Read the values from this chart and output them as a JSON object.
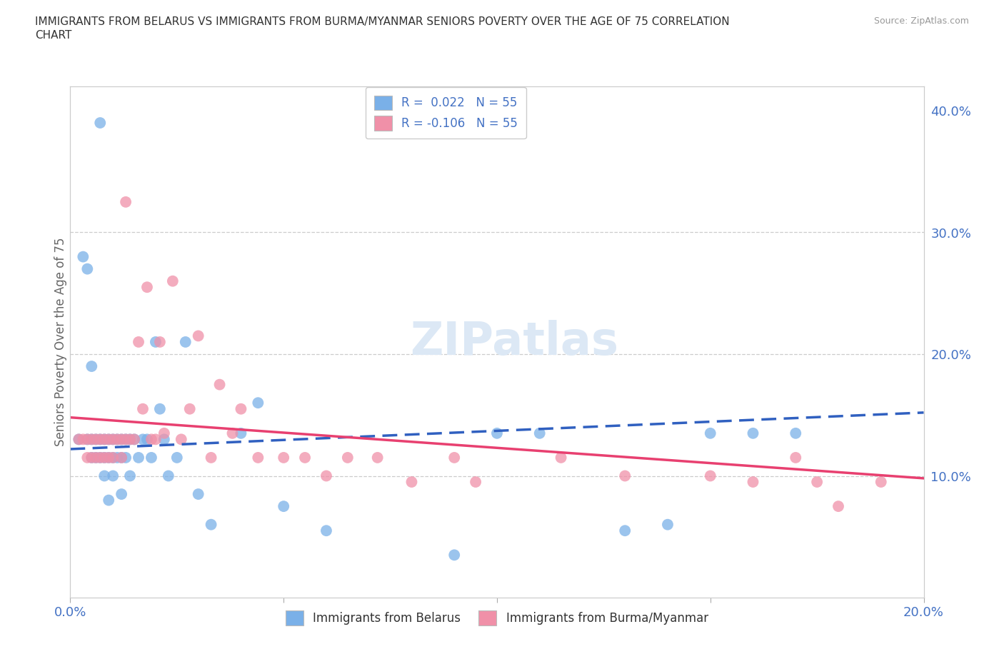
{
  "title_line1": "IMMIGRANTS FROM BELARUS VS IMMIGRANTS FROM BURMA/MYANMAR SENIORS POVERTY OVER THE AGE OF 75 CORRELATION",
  "title_line2": "CHART",
  "source": "Source: ZipAtlas.com",
  "ylabel": "Seniors Poverty Over the Age of 75",
  "xlim": [
    0.0,
    0.2
  ],
  "ylim": [
    0.0,
    0.42
  ],
  "background_color": "#ffffff",
  "belarus_color": "#7ab0e8",
  "burma_color": "#f090a8",
  "blue_color": "#4472c4",
  "belarus_line_color": "#3060c0",
  "burma_line_color": "#e84070",
  "grid_color": "#cccccc",
  "watermark_color": "#dce8f5",
  "belarus_scatter_x": [
    0.002,
    0.003,
    0.004,
    0.004,
    0.005,
    0.005,
    0.005,
    0.006,
    0.006,
    0.007,
    0.007,
    0.007,
    0.008,
    0.008,
    0.008,
    0.009,
    0.009,
    0.009,
    0.01,
    0.01,
    0.01,
    0.011,
    0.011,
    0.012,
    0.012,
    0.012,
    0.013,
    0.013,
    0.014,
    0.014,
    0.015,
    0.016,
    0.017,
    0.018,
    0.019,
    0.02,
    0.021,
    0.022,
    0.023,
    0.025,
    0.027,
    0.03,
    0.033,
    0.04,
    0.044,
    0.05,
    0.06,
    0.09,
    0.1,
    0.11,
    0.13,
    0.14,
    0.15,
    0.16,
    0.17
  ],
  "belarus_scatter_y": [
    0.13,
    0.28,
    0.27,
    0.13,
    0.19,
    0.13,
    0.115,
    0.13,
    0.115,
    0.13,
    0.115,
    0.39,
    0.115,
    0.13,
    0.1,
    0.13,
    0.115,
    0.08,
    0.13,
    0.115,
    0.1,
    0.13,
    0.115,
    0.13,
    0.115,
    0.085,
    0.13,
    0.115,
    0.13,
    0.1,
    0.13,
    0.115,
    0.13,
    0.13,
    0.115,
    0.21,
    0.155,
    0.13,
    0.1,
    0.115,
    0.21,
    0.085,
    0.06,
    0.135,
    0.16,
    0.075,
    0.055,
    0.035,
    0.135,
    0.135,
    0.055,
    0.06,
    0.135,
    0.135,
    0.135
  ],
  "burma_scatter_x": [
    0.002,
    0.003,
    0.004,
    0.004,
    0.005,
    0.005,
    0.006,
    0.006,
    0.007,
    0.007,
    0.008,
    0.008,
    0.009,
    0.009,
    0.01,
    0.01,
    0.011,
    0.012,
    0.012,
    0.013,
    0.013,
    0.014,
    0.015,
    0.016,
    0.017,
    0.018,
    0.019,
    0.02,
    0.021,
    0.022,
    0.024,
    0.026,
    0.028,
    0.03,
    0.033,
    0.035,
    0.038,
    0.04,
    0.044,
    0.05,
    0.055,
    0.06,
    0.065,
    0.072,
    0.08,
    0.09,
    0.095,
    0.115,
    0.13,
    0.15,
    0.16,
    0.17,
    0.175,
    0.18,
    0.19
  ],
  "burma_scatter_y": [
    0.13,
    0.13,
    0.13,
    0.115,
    0.13,
    0.115,
    0.13,
    0.115,
    0.13,
    0.115,
    0.13,
    0.115,
    0.13,
    0.115,
    0.13,
    0.115,
    0.13,
    0.13,
    0.115,
    0.325,
    0.13,
    0.13,
    0.13,
    0.21,
    0.155,
    0.255,
    0.13,
    0.13,
    0.21,
    0.135,
    0.26,
    0.13,
    0.155,
    0.215,
    0.115,
    0.175,
    0.135,
    0.155,
    0.115,
    0.115,
    0.115,
    0.1,
    0.115,
    0.115,
    0.095,
    0.115,
    0.095,
    0.115,
    0.1,
    0.1,
    0.095,
    0.115,
    0.095,
    0.075,
    0.095
  ],
  "belarus_line_x0": 0.0,
  "belarus_line_x1": 0.2,
  "belarus_line_y0": 0.122,
  "belarus_line_y1": 0.152,
  "burma_line_x0": 0.0,
  "burma_line_x1": 0.2,
  "burma_line_y0": 0.148,
  "burma_line_y1": 0.098,
  "legend_top_labels": [
    "R =  0.022   N = 55",
    "R = -0.106   N = 55"
  ],
  "legend_bot_labels": [
    "Immigrants from Belarus",
    "Immigrants from Burma/Myanmar"
  ],
  "xtick_positions": [
    0.0,
    0.05,
    0.1,
    0.15,
    0.2
  ],
  "xtick_labels": [
    "0.0%",
    "",
    "",
    "",
    "20.0%"
  ],
  "ytick_right_positions": [
    0.1,
    0.2,
    0.3,
    0.4
  ],
  "ytick_right_labels": [
    "10.0%",
    "20.0%",
    "30.0%",
    "40.0%"
  ],
  "grid_hlines": [
    0.1,
    0.2,
    0.3
  ]
}
